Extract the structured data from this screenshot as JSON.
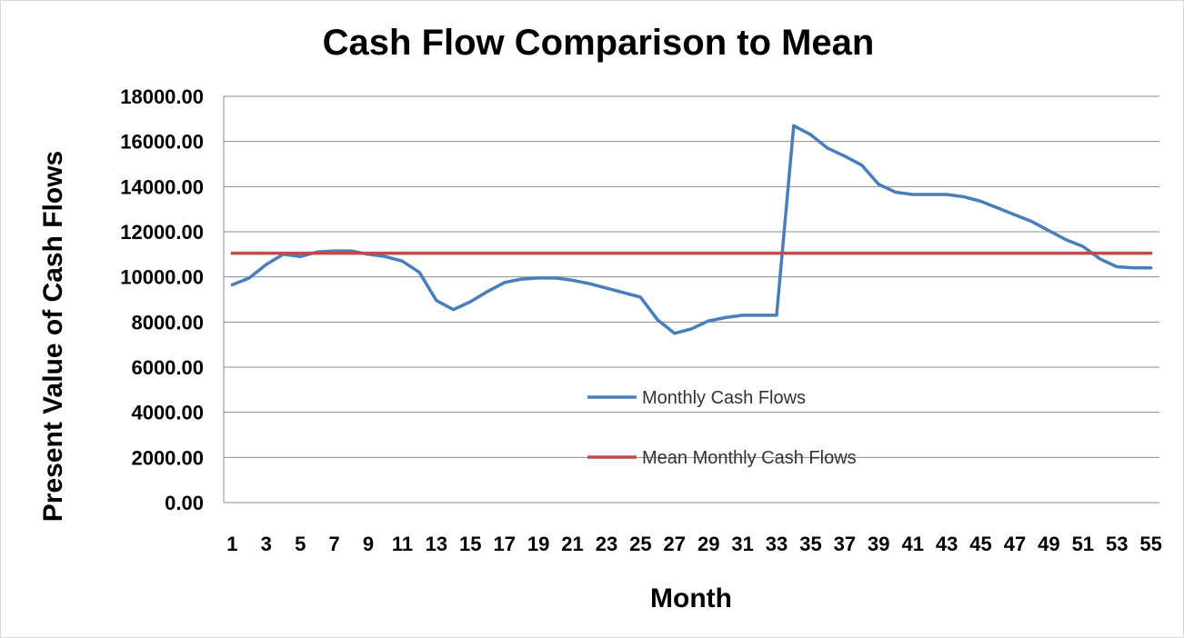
{
  "chart_data": {
    "type": "line",
    "title": "Cash Flow Comparison to Mean",
    "xlabel": "Month",
    "ylabel": "Present Value of Cash Flows",
    "ylim": [
      0,
      18000
    ],
    "yticks": [
      "0.00",
      "2000.00",
      "4000.00",
      "6000.00",
      "8000.00",
      "10000.00",
      "12000.00",
      "14000.00",
      "16000.00",
      "18000.00"
    ],
    "xticks": [
      "1",
      "3",
      "5",
      "7",
      "9",
      "11",
      "13",
      "15",
      "17",
      "19",
      "21",
      "23",
      "25",
      "27",
      "29",
      "31",
      "33",
      "35",
      "37",
      "39",
      "41",
      "43",
      "45",
      "47",
      "49",
      "51",
      "53",
      "55"
    ],
    "x": [
      1,
      2,
      3,
      4,
      5,
      6,
      7,
      8,
      9,
      10,
      11,
      12,
      13,
      14,
      15,
      16,
      17,
      18,
      19,
      20,
      21,
      22,
      23,
      24,
      25,
      26,
      27,
      28,
      29,
      30,
      31,
      32,
      33,
      34,
      35,
      36,
      37,
      38,
      39,
      40,
      41,
      42,
      43,
      44,
      45,
      46,
      47,
      48,
      49,
      50,
      51,
      52,
      53,
      54,
      55
    ],
    "grid": true,
    "legend_position": "center",
    "series": [
      {
        "name": "Monthly Cash Flows",
        "color": "#4a7ebb",
        "values": [
          9650,
          9950,
          10550,
          11000,
          10900,
          11100,
          11150,
          11150,
          11000,
          10900,
          10700,
          10200,
          8950,
          8550,
          8900,
          9350,
          9750,
          9900,
          9950,
          9950,
          9850,
          9700,
          9500,
          9300,
          9100,
          8100,
          7500,
          7700,
          8050,
          8200,
          8300,
          8300,
          8300,
          16700,
          16300,
          15700,
          15350,
          14950,
          14100,
          13750,
          13650,
          13650,
          13650,
          13550,
          13350,
          13050,
          12750,
          12450,
          12050,
          11650,
          11350,
          10800,
          10450,
          10400,
          10400
        ]
      },
      {
        "name": "Mean Monthly Cash Flows",
        "color": "#be4b48",
        "values": [
          11050,
          11050,
          11050,
          11050,
          11050,
          11050,
          11050,
          11050,
          11050,
          11050,
          11050,
          11050,
          11050,
          11050,
          11050,
          11050,
          11050,
          11050,
          11050,
          11050,
          11050,
          11050,
          11050,
          11050,
          11050,
          11050,
          11050,
          11050,
          11050,
          11050,
          11050,
          11050,
          11050,
          11050,
          11050,
          11050,
          11050,
          11050,
          11050,
          11050,
          11050,
          11050,
          11050,
          11050,
          11050,
          11050,
          11050,
          11050,
          11050,
          11050,
          11050,
          11050,
          11050,
          11050,
          11050
        ]
      }
    ]
  }
}
